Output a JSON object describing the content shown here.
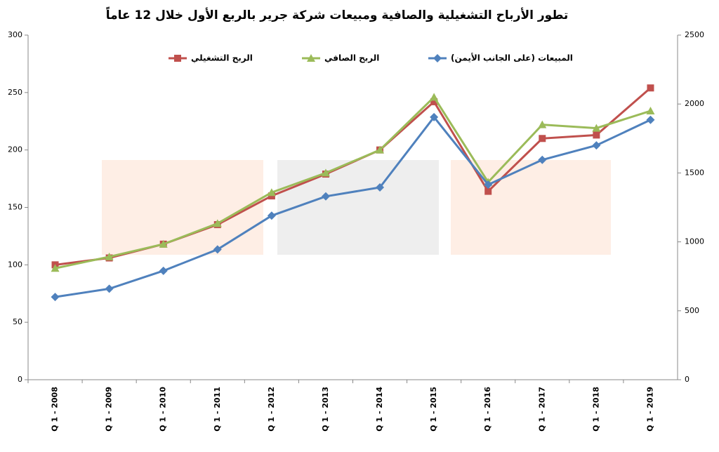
{
  "chart_data": {
    "type": "line",
    "title": "تطور الأرباح التشغيلية والصافية ومبيعات شركة جرير بالربع الأول خلال 12 عاماً",
    "categories": [
      "Q 1 - 2008",
      "Q 1 - 2009",
      "Q 1 - 2010",
      "Q 1 - 2011",
      "Q 1 - 2012",
      "Q 1 - 2013",
      "Q 1 - 2014",
      "Q 1 - 2015",
      "Q 1 - 2016",
      "Q 1 - 2017",
      "Q 1 - 2018",
      "Q 1 - 2019"
    ],
    "series": [
      {
        "name": "الربح التشغيلي",
        "color": "#c0504d",
        "marker": "square",
        "values": [
          100,
          106,
          118,
          135,
          160,
          179,
          200,
          242,
          164,
          210,
          213,
          254
        ]
      },
      {
        "name": "الربح الصافي",
        "color": "#9bbb59",
        "marker": "triangle",
        "values": [
          97,
          107,
          118,
          136,
          163,
          180,
          200,
          246,
          172,
          222,
          219,
          234
        ]
      },
      {
        "name": "المبيعات (على الجانب الأيمن)",
        "color": "#4f81bd",
        "marker": "diamond",
        "axis": "y2",
        "values": [
          600,
          660,
          790,
          945,
          1190,
          1330,
          1395,
          1905,
          1415,
          1595,
          1700,
          1885
        ]
      }
    ],
    "ylim": [
      0,
      300
    ],
    "yticks": [
      0,
      50,
      100,
      150,
      200,
      250,
      300
    ],
    "y2lim": [
      0,
      2500
    ],
    "y2ticks": [
      0,
      500,
      1000,
      1500,
      2000,
      2500
    ],
    "legend": "top"
  }
}
